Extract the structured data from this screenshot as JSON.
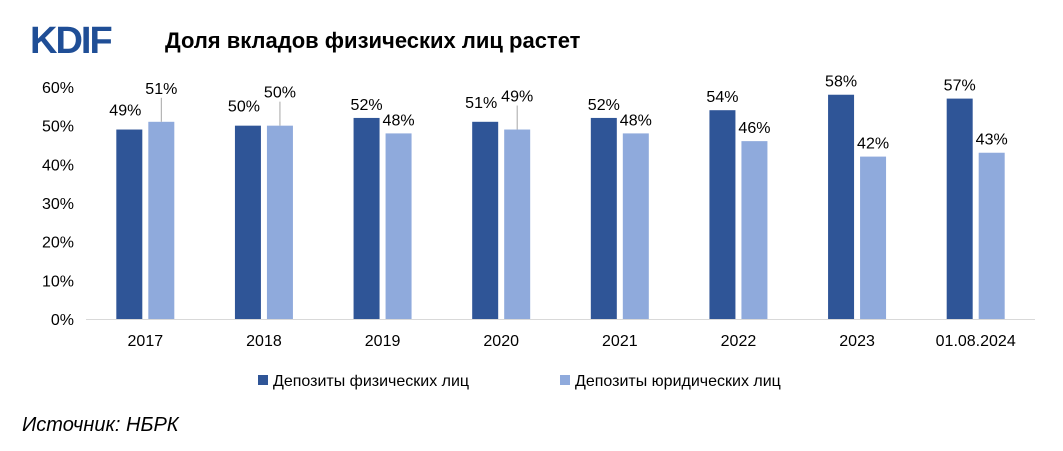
{
  "header": {
    "logo": "KDIF",
    "title": "Доля вкладов физических лиц растет"
  },
  "footer": {
    "source": "Источник: НБРК"
  },
  "colors": {
    "series_1": "#2f5597",
    "series_2": "#8faadc",
    "logo": "#1f4e96",
    "grid": "#d9d9d9"
  },
  "chart_data": {
    "type": "bar",
    "categories": [
      "2017",
      "2018",
      "2019",
      "2020",
      "2021",
      "2022",
      "2023",
      "01.08.2024"
    ],
    "series": [
      {
        "name": "Депозиты физических лиц",
        "values": [
          49,
          50,
          52,
          51,
          52,
          54,
          58,
          57
        ],
        "labels": [
          "49%",
          "50%",
          "52%",
          "51%",
          "52%",
          "54%",
          "58%",
          "57%"
        ]
      },
      {
        "name": "Депозиты юридических лиц",
        "values": [
          51,
          50,
          48,
          49,
          48,
          46,
          42,
          43
        ],
        "labels": [
          "51%",
          "50%",
          "48%",
          "49%",
          "48%",
          "46%",
          "42%",
          "43%"
        ]
      }
    ],
    "ylim": [
      0,
      60
    ],
    "yticks": [
      "0%",
      "10%",
      "20%",
      "30%",
      "40%",
      "50%",
      "60%"
    ],
    "grid": false,
    "legend_position": "bottom",
    "title": "Доля вкладов физических лиц растет"
  }
}
